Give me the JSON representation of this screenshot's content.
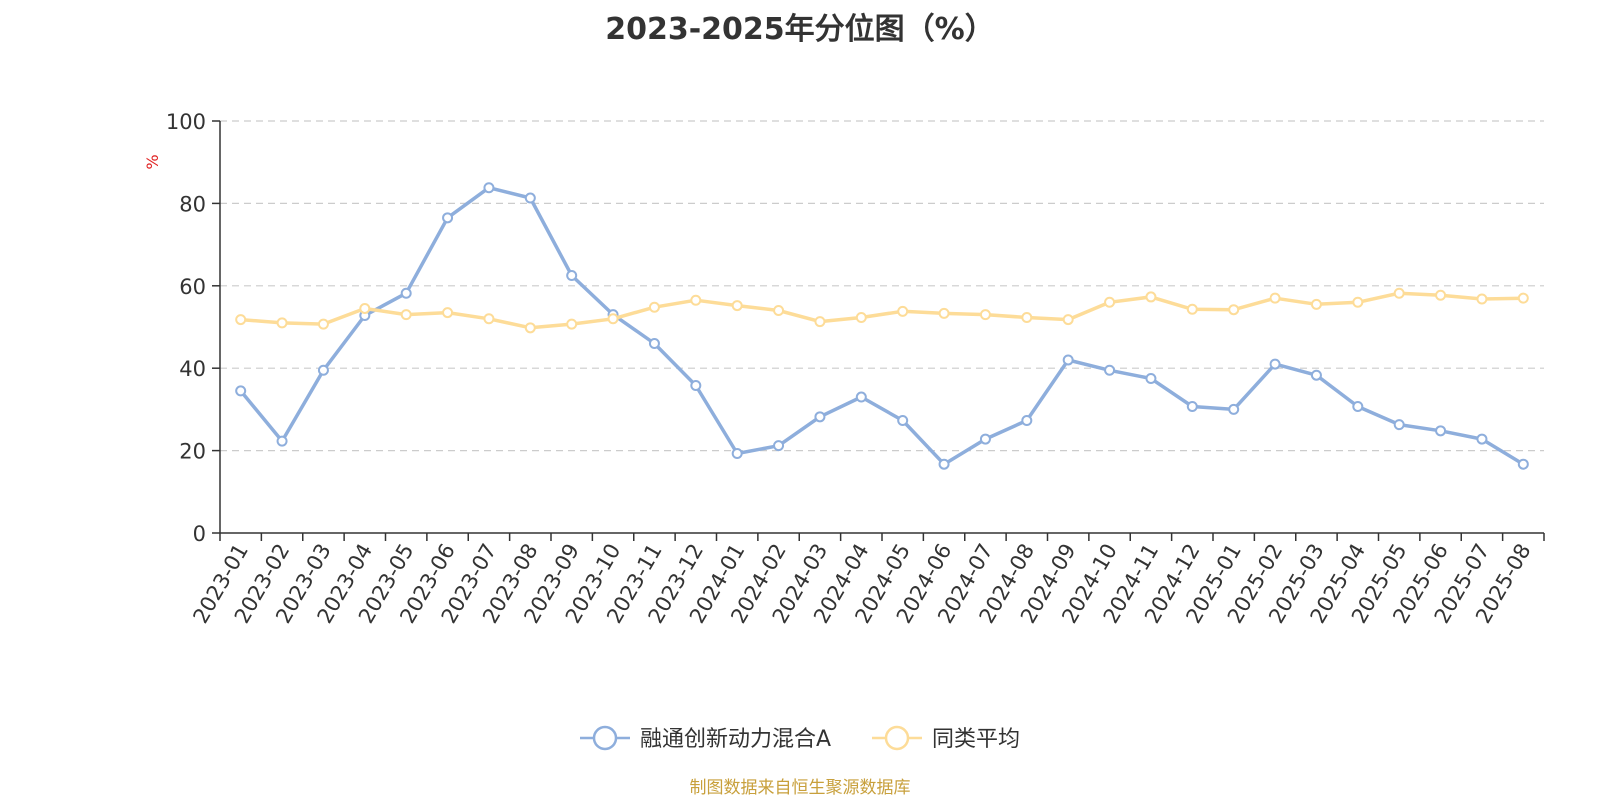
{
  "chart_data": {
    "type": "line",
    "title": "2023-2025年分位图（%）",
    "ylabel": "%",
    "xlabel": "",
    "ylim": [
      0,
      100
    ],
    "yticks": [
      0,
      20,
      40,
      60,
      80,
      100
    ],
    "grid": true,
    "legend_position": "bottom",
    "categories": [
      "2023-01",
      "2023-02",
      "2023-03",
      "2023-04",
      "2023-05",
      "2023-06",
      "2023-07",
      "2023-08",
      "2023-09",
      "2023-10",
      "2023-11",
      "2023-12",
      "2024-01",
      "2024-02",
      "2024-03",
      "2024-04",
      "2024-05",
      "2024-06",
      "2024-07",
      "2024-08",
      "2024-09",
      "2024-10",
      "2024-11",
      "2024-12",
      "2025-01",
      "2025-02",
      "2025-03",
      "2025-04",
      "2025-05",
      "2025-06",
      "2025-07",
      "2025-08"
    ],
    "series": [
      {
        "name": "融通创新动力混合A",
        "color": "#8eaedc",
        "values": [
          34.5,
          22.3,
          39.5,
          52.8,
          58.2,
          76.5,
          83.8,
          81.3,
          62.5,
          53.0,
          46.0,
          35.8,
          19.3,
          21.2,
          28.2,
          33.0,
          27.3,
          16.7,
          22.8,
          27.3,
          42.0,
          39.5,
          37.5,
          30.7,
          30.0,
          41.0,
          38.3,
          30.7,
          26.3,
          24.8,
          22.8,
          16.7
        ]
      },
      {
        "name": "同类平均",
        "color": "#fddc98",
        "values": [
          51.8,
          51.0,
          50.7,
          54.5,
          53.0,
          53.5,
          52.0,
          49.8,
          50.7,
          52.0,
          54.8,
          56.5,
          55.2,
          54.0,
          51.3,
          52.3,
          53.8,
          53.3,
          53.0,
          52.3,
          51.8,
          56.0,
          57.3,
          54.3,
          54.2,
          57.0,
          55.5,
          56.0,
          58.2,
          57.7,
          56.8,
          57.0
        ]
      }
    ]
  },
  "footer": "制图数据来自恒生聚源数据库",
  "colors": {
    "axis": "#333333",
    "grid": "#cccccc",
    "ylabel": "#e02020",
    "footer": "#c8a03c"
  }
}
